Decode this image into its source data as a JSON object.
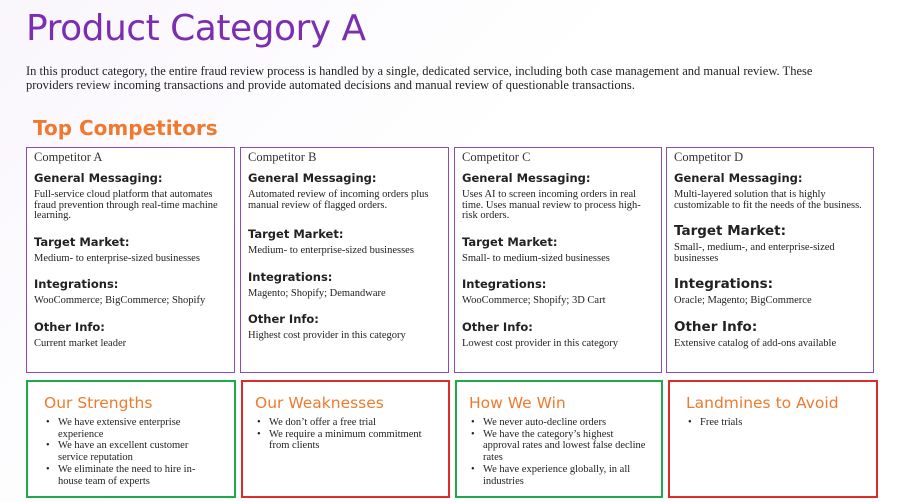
{
  "title": "Product Category A",
  "intro": "In this product category, the entire fraud review process is handled by a single, dedicated service, including both case management and manual review. These providers review incoming transactions and provide automated decisions and manual review of questionable transactions.",
  "competitors_heading": "Top Competitors",
  "labels": {
    "messaging": "General Messaging:",
    "market": "Target Market:",
    "integrations": "Integrations:",
    "other": "Other Info:"
  },
  "competitors": [
    {
      "name": "Competitor A",
      "messaging": "Full-service cloud platform that automates fraud prevention through real-time machine learning.",
      "market": "Medium- to enterprise-sized businesses",
      "integrations": "WooCommerce; BigCommerce; Shopify",
      "other": "Current market leader"
    },
    {
      "name": "Competitor B",
      "messaging": "Automated review of incoming orders plus manual review of flagged orders.",
      "market": "Medium- to enterprise-sized businesses",
      "integrations": "Magento; Shopify; Demandware",
      "other": "Highest cost provider in this category"
    },
    {
      "name": "Competitor C",
      "messaging": "Uses AI to screen incoming orders in real time. Uses manual review to process high-risk orders.",
      "market": "Small- to medium-sized businesses",
      "integrations": "WooCommerce; Shopify; 3D Cart",
      "other": "Lowest cost provider in this category"
    },
    {
      "name": "Competitor D",
      "messaging": "Multi-layered solution that is highly customizable to fit the needs of the business.",
      "market": "Small-, medium-, and enterprise-sized businesses",
      "integrations": "Oracle; Magento; BigCommerce",
      "other": "Extensive catalog of add-ons available"
    }
  ],
  "boxes": {
    "strengths": {
      "title": "Our Strengths",
      "items": [
        "We have extensive enterprise experience",
        "We have an excellent customer service reputation",
        "We eliminate the need to hire in-house team of experts"
      ]
    },
    "weaknesses": {
      "title": "Our Weaknesses",
      "items": [
        "We don’t offer a free trial",
        "We require a minimum commitment from clients"
      ]
    },
    "win": {
      "title": "How We Win",
      "items": [
        "We never auto-decline orders",
        "We have the category’s highest approval rates and lowest false decline rates",
        "We have experience globally, in all industries"
      ]
    },
    "landmines": {
      "title": "Landmines to Avoid",
      "items": [
        "Free trials"
      ]
    }
  },
  "colors": {
    "title": "#7b2fb0",
    "heading": "#ef7a2f",
    "competitor_border": "#8a4db8",
    "positive_border": "#1bab4a",
    "negative_border": "#e02b2b"
  }
}
